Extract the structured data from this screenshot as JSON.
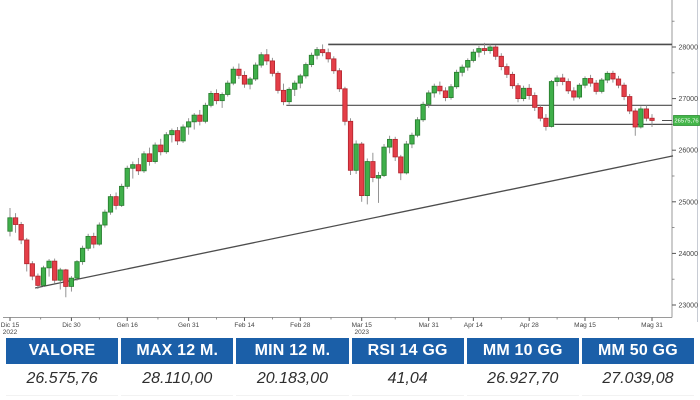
{
  "chart_data": {
    "type": "candlestick",
    "title": "",
    "last_price": 26575.76,
    "last_price_label": "26575,76",
    "y_axis": {
      "major_ticks": [
        23000,
        24000,
        25000,
        26000,
        27000,
        28000
      ],
      "minor_ticks": [
        23500,
        24500,
        25500,
        26500,
        27500,
        28500
      ],
      "range_visible": [
        22800,
        28750
      ]
    },
    "x_ticks": [
      {
        "label": "Dic 15",
        "index": 0,
        "year": "2022"
      },
      {
        "label": "Dic 30",
        "index": 11
      },
      {
        "label": "Gen 16",
        "index": 21
      },
      {
        "label": "Gen 31",
        "index": 32
      },
      {
        "label": "Feb 14",
        "index": 42
      },
      {
        "label": "Feb 28",
        "index": 52
      },
      {
        "label": "Mar 15",
        "index": 63,
        "year": "2023"
      },
      {
        "label": "Mar 31",
        "index": 75
      },
      {
        "label": "Apr 14",
        "index": 83
      },
      {
        "label": "Apr 28",
        "index": 93
      },
      {
        "label": "Mag 15",
        "index": 103
      },
      {
        "label": "Mag 31",
        "index": 115
      }
    ],
    "resistance_levels": [
      {
        "price": 28050,
        "from_index": 57,
        "stroke_width": 1.6
      },
      {
        "price": 26870,
        "from_index": 49.5,
        "stroke_width": 1.2
      },
      {
        "price": 26500,
        "from_index": 97.5,
        "stroke_width": 1.2
      }
    ],
    "support_trendline": {
      "from_index": 4.5,
      "from_price": 23330,
      "to_price": 25890
    },
    "colors": {
      "up": "#3faf4a",
      "up_border": "#267a2c",
      "down": "#e43e48",
      "down_border": "#b2242d",
      "wick": "#888888",
      "level_line": "#4d4d4d",
      "axis": "#9a9a9a",
      "tick_text": "#444444",
      "last_price_bg": "#43b649",
      "last_price_border": "#2f8f35",
      "outer_border": "#c8ccd4"
    },
    "candles_ohlc": [
      [
        24430,
        24880,
        24330,
        24690
      ],
      [
        24690,
        24780,
        24400,
        24560
      ],
      [
        24560,
        24610,
        24180,
        24260
      ],
      [
        24260,
        24300,
        23650,
        23800
      ],
      [
        23800,
        23850,
        23480,
        23560
      ],
      [
        23560,
        23610,
        23310,
        23380
      ],
      [
        23380,
        23760,
        23350,
        23720
      ],
      [
        23720,
        23890,
        23550,
        23850
      ],
      [
        23850,
        23900,
        23420,
        23480
      ],
      [
        23480,
        23720,
        23300,
        23680
      ],
      [
        23680,
        23700,
        23150,
        23360
      ],
      [
        23360,
        23560,
        23260,
        23520
      ],
      [
        23520,
        23870,
        23470,
        23840
      ],
      [
        23840,
        24150,
        23780,
        24100
      ],
      [
        24100,
        24380,
        24050,
        24330
      ],
      [
        24330,
        24400,
        24100,
        24180
      ],
      [
        24180,
        24600,
        24150,
        24550
      ],
      [
        24550,
        24850,
        24500,
        24800
      ],
      [
        24800,
        25150,
        24750,
        25100
      ],
      [
        25100,
        25180,
        24850,
        24930
      ],
      [
        24930,
        25350,
        24900,
        25300
      ],
      [
        25300,
        25700,
        25250,
        25650
      ],
      [
        25650,
        25780,
        25450,
        25720
      ],
      [
        25720,
        25850,
        25520,
        25600
      ],
      [
        25600,
        25980,
        25560,
        25930
      ],
      [
        25930,
        26050,
        25700,
        25780
      ],
      [
        25780,
        26150,
        25740,
        26100
      ],
      [
        26100,
        26220,
        25900,
        25970
      ],
      [
        25970,
        26350,
        25930,
        26300
      ],
      [
        26300,
        26420,
        26150,
        26380
      ],
      [
        26380,
        26450,
        26100,
        26180
      ],
      [
        26180,
        26500,
        26140,
        26450
      ],
      [
        26450,
        26620,
        26300,
        26550
      ],
      [
        26550,
        26720,
        26400,
        26680
      ],
      [
        26680,
        26780,
        26480,
        26560
      ],
      [
        26560,
        26920,
        26520,
        26870
      ],
      [
        26870,
        27150,
        26830,
        27100
      ],
      [
        27100,
        27180,
        26890,
        26960
      ],
      [
        26960,
        27120,
        26820,
        27080
      ],
      [
        27080,
        27350,
        27040,
        27300
      ],
      [
        27300,
        27620,
        27260,
        27570
      ],
      [
        27570,
        27680,
        27380,
        27450
      ],
      [
        27450,
        27530,
        27210,
        27280
      ],
      [
        27280,
        27420,
        27180,
        27380
      ],
      [
        27380,
        27700,
        27340,
        27650
      ],
      [
        27650,
        27900,
        27600,
        27850
      ],
      [
        27850,
        27960,
        27650,
        27730
      ],
      [
        27730,
        27790,
        27430,
        27490
      ],
      [
        27490,
        27530,
        27100,
        27160
      ],
      [
        27160,
        27290,
        26870,
        26940
      ],
      [
        26940,
        27220,
        26890,
        27180
      ],
      [
        27180,
        27350,
        27050,
        27300
      ],
      [
        27300,
        27480,
        27200,
        27440
      ],
      [
        27440,
        27700,
        27390,
        27660
      ],
      [
        27660,
        27890,
        27610,
        27840
      ],
      [
        27840,
        28000,
        27760,
        27950
      ],
      [
        27950,
        28050,
        27820,
        27890
      ],
      [
        27890,
        27970,
        27700,
        27770
      ],
      [
        27770,
        27820,
        27480,
        27540
      ],
      [
        27540,
        27590,
        27130,
        27190
      ],
      [
        27190,
        27230,
        26480,
        26560
      ],
      [
        26560,
        26620,
        25520,
        25610
      ],
      [
        25610,
        26190,
        25540,
        26120
      ],
      [
        26120,
        26160,
        25000,
        25120
      ],
      [
        25120,
        25840,
        24950,
        25780
      ],
      [
        25780,
        25950,
        25380,
        25470
      ],
      [
        25460,
        25580,
        24980,
        25510
      ],
      [
        25510,
        26120,
        25480,
        26060
      ],
      [
        26060,
        26280,
        25940,
        26210
      ],
      [
        26210,
        26260,
        25790,
        25870
      ],
      [
        25870,
        25910,
        25420,
        25560
      ],
      [
        25560,
        26180,
        25530,
        26120
      ],
      [
        26120,
        26340,
        26040,
        26290
      ],
      [
        26290,
        26640,
        26250,
        26590
      ],
      [
        26590,
        26940,
        26550,
        26890
      ],
      [
        26890,
        27160,
        26820,
        27110
      ],
      [
        27110,
        27290,
        27020,
        27240
      ],
      [
        27240,
        27330,
        27080,
        27150
      ],
      [
        27150,
        27220,
        26950,
        27020
      ],
      [
        27020,
        27280,
        26980,
        27230
      ],
      [
        27230,
        27560,
        27190,
        27510
      ],
      [
        27510,
        27660,
        27430,
        27610
      ],
      [
        27610,
        27780,
        27540,
        27740
      ],
      [
        27740,
        27960,
        27700,
        27900
      ],
      [
        27900,
        28020,
        27800,
        27970
      ],
      [
        27970,
        28080,
        27850,
        27930
      ],
      [
        27930,
        28050,
        27870,
        28000
      ],
      [
        28000,
        28040,
        27750,
        27820
      ],
      [
        27820,
        27880,
        27550,
        27620
      ],
      [
        27620,
        27680,
        27400,
        27470
      ],
      [
        27470,
        27520,
        27190,
        27250
      ],
      [
        27250,
        27300,
        26930,
        27000
      ],
      [
        27000,
        27250,
        26950,
        27200
      ],
      [
        27200,
        27280,
        26980,
        27060
      ],
      [
        27060,
        27120,
        26760,
        26830
      ],
      [
        26830,
        26880,
        26560,
        26620
      ],
      [
        26620,
        26700,
        26380,
        26460
      ],
      [
        26460,
        27360,
        26440,
        27330
      ],
      [
        27330,
        27450,
        27240,
        27400
      ],
      [
        27400,
        27480,
        27260,
        27330
      ],
      [
        27330,
        27390,
        27090,
        27150
      ],
      [
        27150,
        27220,
        26960,
        27030
      ],
      [
        27030,
        27300,
        26990,
        27260
      ],
      [
        27260,
        27430,
        27200,
        27390
      ],
      [
        27390,
        27460,
        27230,
        27300
      ],
      [
        27300,
        27360,
        27080,
        27140
      ],
      [
        27140,
        27400,
        27100,
        27360
      ],
      [
        27360,
        27530,
        27300,
        27490
      ],
      [
        27490,
        27540,
        27310,
        27380
      ],
      [
        27380,
        27440,
        27200,
        27260
      ],
      [
        27260,
        27310,
        26970,
        27040
      ],
      [
        27040,
        27090,
        26700,
        26760
      ],
      [
        26760,
        26810,
        26280,
        26450
      ],
      [
        26450,
        26850,
        26420,
        26800
      ],
      [
        26800,
        26870,
        26560,
        26620
      ],
      [
        26620,
        26700,
        26450,
        26576
      ]
    ]
  },
  "table": {
    "columns": [
      {
        "header": "VALORE",
        "value": "26.575,76"
      },
      {
        "header": "MAX 12 M.",
        "value": "28.110,00"
      },
      {
        "header": "MIN 12 M.",
        "value": "20.183,00"
      },
      {
        "header": "RSI 14 GG",
        "value": "41,04"
      },
      {
        "header": "MM 10 GG",
        "value": "26.927,70"
      },
      {
        "header": "MM 50 GG",
        "value": "27.039,08"
      }
    ]
  }
}
